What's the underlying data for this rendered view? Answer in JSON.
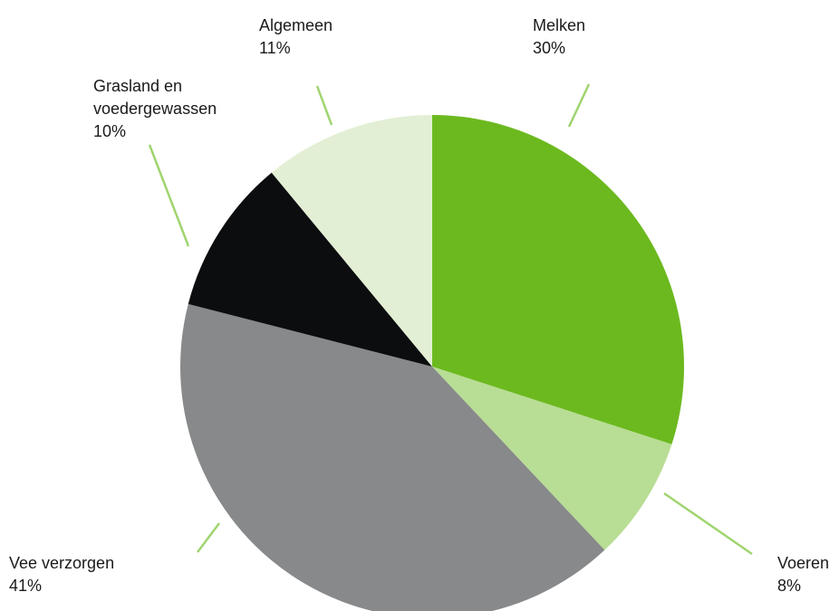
{
  "chart_data": {
    "type": "pie",
    "categories": [
      "Melken",
      "Voeren",
      "Vee verzorgen",
      "Grasland en voedergewassen",
      "Algemeen"
    ],
    "values": [
      30,
      8,
      41,
      10,
      11
    ],
    "value_labels": [
      "30%",
      "8%",
      "41%",
      "10%",
      "11%"
    ],
    "colors": [
      "#6cb91f",
      "#b8dd94",
      "#87898a",
      "#0c0d0f",
      "#e2efd4"
    ]
  }
}
